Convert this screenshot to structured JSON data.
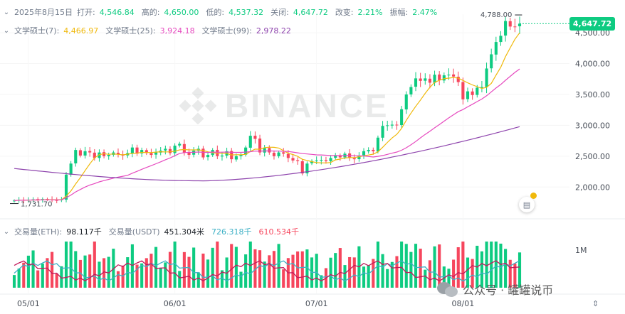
{
  "ohlc": {
    "date": "2025年8月15日",
    "open_label": "打开:",
    "open": "4,546.84",
    "high_label": "高的:",
    "high": "4,650.00",
    "low_label": "低的:",
    "low": "4,537.32",
    "close_label": "关闭:",
    "close": "4,647.72",
    "change_label": "改变:",
    "change": "2.21%",
    "amplitude_label": "振幅:",
    "amplitude": "2.47%"
  },
  "ma": {
    "ma7_label": "文学硕士(7):",
    "ma7": "4,466.97",
    "ma25_label": "文学硕士(25):",
    "ma25": "3,924.18",
    "ma99_label": "文学硕士(99):",
    "ma99": "2,978.22"
  },
  "volume": {
    "label": "交易量(ETH):",
    "eth": "98.117千",
    "usdt_label": "交易量(USDT)",
    "usdt": "451.304米",
    "ma1": "726.318千",
    "ma2": "610.534千"
  },
  "price_tag": "4,647.72",
  "annotations": {
    "high_marker": "4,788.00",
    "low_marker": "1,731.70"
  },
  "y_axis": [
    "4,500.00",
    "4,000.00",
    "3,500.00",
    "3,000.00",
    "2,500.00",
    "2,000.00"
  ],
  "volume_axis": "1M",
  "x_axis": [
    "05/01",
    "06/01",
    "07/01",
    "08/01"
  ],
  "watermark": "BINANCE",
  "wechat_label": "公众号 · 罐罐说币",
  "colors": {
    "up": "#0ecb81",
    "down": "#f6465d",
    "ma7": "#f0b90b",
    "ma25": "#e64abf",
    "ma99": "#8e44ad",
    "vol_ma1": "#3db0c5",
    "vol_ma2": "#c2185b"
  },
  "chart_data": {
    "type": "candlestick",
    "x_start": "2025-04-28",
    "x_end": "2025-08-15",
    "ylim": [
      1600,
      4800
    ],
    "closes": [
      1780,
      1790,
      1785,
      1795,
      1800,
      1790,
      1805,
      1795,
      1790,
      1785,
      1800,
      2200,
      2380,
      2600,
      2510,
      2580,
      2560,
      2470,
      2560,
      2500,
      2520,
      2560,
      2530,
      2510,
      2550,
      2640,
      2540,
      2600,
      2550,
      2520,
      2560,
      2590,
      2620,
      2550,
      2670,
      2700,
      2560,
      2520,
      2590,
      2620,
      2480,
      2520,
      2600,
      2500,
      2510,
      2580,
      2450,
      2500,
      2520,
      2640,
      2830,
      2780,
      2560,
      2630,
      2560,
      2500,
      2560,
      2540,
      2470,
      2430,
      2420,
      2220,
      2380,
      2420,
      2430,
      2440,
      2420,
      2470,
      2510,
      2480,
      2540,
      2470,
      2450,
      2510,
      2580,
      2600,
      2580,
      2800,
      2990,
      3000,
      3010,
      3000,
      3260,
      3500,
      3620,
      3760,
      3720,
      3760,
      3690,
      3820,
      3730,
      3810,
      3820,
      3790,
      3700,
      3420,
      3550,
      3490,
      3610,
      3620,
      3920,
      4150,
      4350,
      4450,
      4690,
      4600,
      4600,
      4647
    ],
    "ma7_end": 4466.97,
    "ma25_end": 3924.18,
    "ma99_end": 2978.22
  }
}
